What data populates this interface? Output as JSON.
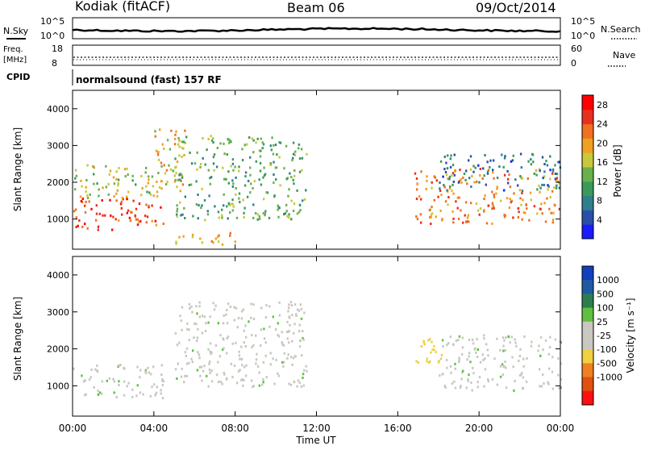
{
  "header": {
    "station": "Kodiak (fitACF)",
    "beam": "Beam 06",
    "date": "09/Oct/2014"
  },
  "top_panels": {
    "noise": {
      "left_label": "N.Sky",
      "right_label": "N.Search",
      "left_ticks": [
        "10^5",
        "10^0"
      ],
      "right_ticks": [
        "10^5",
        "10^0"
      ]
    },
    "freq": {
      "left_label_1": "Freq.",
      "left_label_2": "[MHz]",
      "right_label": "Nave",
      "left_ticks": [
        "18",
        "8"
      ],
      "right_ticks": [
        "60",
        "0"
      ]
    },
    "cpid": {
      "left_label": "CPID",
      "text": "normalsound (fast) 157 RF"
    }
  },
  "colors": {
    "power_scale": [
      "#1a1aff",
      "#2a4fa8",
      "#2f7f8f",
      "#3a9a5a",
      "#6ab04c",
      "#c7c93a",
      "#f0a020",
      "#f07020",
      "#e83020",
      "#ff0000"
    ],
    "velocity_scale": [
      "#1040c0",
      "#205aa0",
      "#2e7d4f",
      "#60c040",
      "#c8c8c0",
      "#c8c8c0",
      "#f0d040",
      "#f08020",
      "#e05010",
      "#ff1010"
    ]
  },
  "chart_data": [
    {
      "type": "heatmap",
      "name_hint": "power",
      "xlabel": "Time UT",
      "ylabel": "Slant Range [km]",
      "x_tick_labels": [
        "00:00",
        "04:00",
        "08:00",
        "12:00",
        "16:00",
        "20:00",
        "00:00"
      ],
      "xlim_hours": [
        0,
        24
      ],
      "ylim_km": [
        180,
        4500
      ],
      "y_ticks": [
        1000,
        2000,
        3000,
        4000
      ],
      "colorbar": {
        "label": "Power [dB]",
        "ticks": [
          4,
          8,
          12,
          16,
          20,
          24,
          28
        ],
        "range": [
          0,
          30
        ]
      },
      "regions": [
        {
          "t0": 0.0,
          "t1": 4.5,
          "r0": 700,
          "r1": 1600,
          "level": 26
        },
        {
          "t0": 0.0,
          "t1": 4.5,
          "r0": 1600,
          "r1": 2500,
          "level": 16
        },
        {
          "t0": 4.0,
          "t1": 5.5,
          "r0": 1500,
          "r1": 3500,
          "level": 18
        },
        {
          "t0": 5.0,
          "t1": 11.5,
          "r0": 1000,
          "r1": 3300,
          "level": 12
        },
        {
          "t0": 5.0,
          "t1": 8.0,
          "r0": 300,
          "r1": 650,
          "level": 20
        },
        {
          "t0": 16.8,
          "t1": 24.0,
          "r0": 900,
          "r1": 2400,
          "level": 22
        },
        {
          "t0": 18.0,
          "t1": 24.0,
          "r0": 1800,
          "r1": 2800,
          "level": 6
        }
      ]
    },
    {
      "type": "heatmap",
      "name_hint": "velocity",
      "xlabel": "Time UT",
      "ylabel": "Slant Range [km]",
      "x_tick_labels": [
        "00:00",
        "04:00",
        "08:00",
        "12:00",
        "16:00",
        "20:00",
        "00:00"
      ],
      "xlim_hours": [
        0,
        24
      ],
      "ylim_km": [
        180,
        4500
      ],
      "y_ticks": [
        1000,
        2000,
        3000,
        4000
      ],
      "colorbar": {
        "label": "Velocity [m s⁻¹]",
        "ticks": [
          1000,
          500,
          100,
          25,
          -25,
          -100,
          -500,
          -1000
        ]
      },
      "regions": [
        {
          "t0": 0.0,
          "t1": 4.5,
          "r0": 700,
          "r1": 1600,
          "level": 0
        },
        {
          "t0": 5.0,
          "t1": 11.5,
          "r0": 1000,
          "r1": 3300,
          "level": 0
        },
        {
          "t0": 16.8,
          "t1": 18.2,
          "r0": 1400,
          "r1": 2300,
          "level": -300
        },
        {
          "t0": 18.0,
          "t1": 24.0,
          "r0": 900,
          "r1": 2400,
          "level": 0
        }
      ]
    }
  ]
}
